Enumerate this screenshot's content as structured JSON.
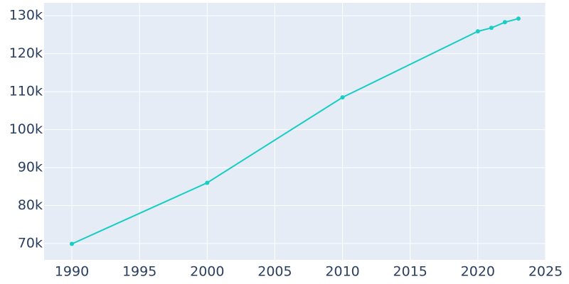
{
  "chart_data": {
    "type": "line",
    "x": [
      1990,
      2000,
      2010,
      2020,
      2021,
      2022,
      2023
    ],
    "series": [
      {
        "color": "#17cdc4",
        "values": [
          69900,
          86000,
          108500,
          125900,
          126800,
          128300,
          129250
        ]
      }
    ],
    "xlim": [
      1987.95,
      2025
    ],
    "xticks": [
      1990,
      1995,
      2000,
      2005,
      2010,
      2015,
      2020,
      2025
    ],
    "ylim": [
      65700,
      133400
    ],
    "yticks": [
      {
        "value": 70000,
        "label": "70k"
      },
      {
        "value": 80000,
        "label": "80k"
      },
      {
        "value": 90000,
        "label": "90k"
      },
      {
        "value": 100000,
        "label": "100k"
      },
      {
        "value": 110000,
        "label": "110k"
      },
      {
        "value": 120000,
        "label": "120k"
      },
      {
        "value": 130000,
        "label": "130k"
      }
    ],
    "grid": true,
    "background": "#e5ecf6"
  }
}
